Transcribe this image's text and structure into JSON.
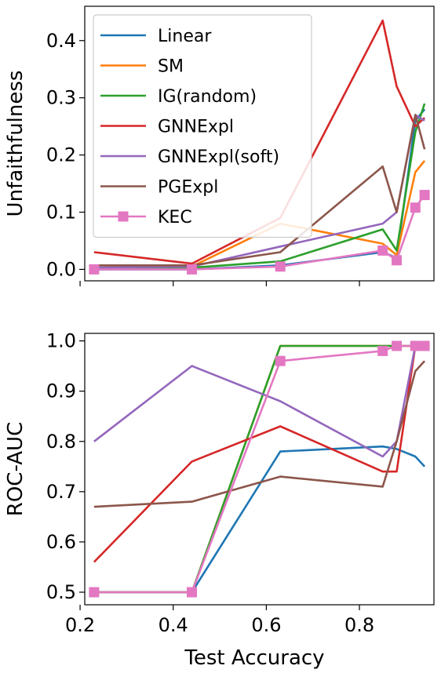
{
  "chart_data": [
    {
      "type": "line",
      "title": "",
      "xlabel": "",
      "ylabel": "Unfaithfulness",
      "xlim": [
        0.21,
        0.96
      ],
      "ylim": [
        -0.02,
        0.46
      ],
      "xticks": [
        0.2,
        0.4,
        0.6,
        0.8
      ],
      "yticks": [
        0.0,
        0.1,
        0.2,
        0.3,
        0.4
      ],
      "ytick_labels": [
        "0.0",
        "0.1",
        "0.2",
        "0.3",
        "0.4"
      ],
      "x_tick_labels_visible": false,
      "grid": false,
      "legend_placement": "top-left",
      "series": [
        {
          "name": "Linear",
          "color": "#1f77b4",
          "marker": "none",
          "x": [
            0.23,
            0.44,
            0.63,
            0.85,
            0.88,
            0.92,
            0.94
          ],
          "y": [
            0.0,
            0.0,
            0.007,
            0.03,
            0.02,
            0.26,
            0.28
          ]
        },
        {
          "name": "SM",
          "color": "#ff7f0e",
          "marker": "none",
          "x": [
            0.23,
            0.44,
            0.63,
            0.85,
            0.88,
            0.92,
            0.94
          ],
          "y": [
            0.003,
            0.005,
            0.08,
            0.045,
            0.025,
            0.17,
            0.19
          ]
        },
        {
          "name": "IG(random)",
          "color": "#2ca02c",
          "marker": "none",
          "x": [
            0.23,
            0.44,
            0.63,
            0.85,
            0.88,
            0.92,
            0.94
          ],
          "y": [
            0.003,
            0.003,
            0.014,
            0.07,
            0.033,
            0.24,
            0.29
          ]
        },
        {
          "name": "GNNExpl",
          "color": "#d62728",
          "marker": "none",
          "x": [
            0.23,
            0.44,
            0.63,
            0.85,
            0.88,
            0.92,
            0.94
          ],
          "y": [
            0.03,
            0.01,
            0.09,
            0.435,
            0.32,
            0.25,
            0.265
          ]
        },
        {
          "name": "GNNExpl(soft)",
          "color": "#9467bd",
          "marker": "none",
          "x": [
            0.23,
            0.44,
            0.63,
            0.85,
            0.88,
            0.92,
            0.94
          ],
          "y": [
            0.003,
            0.005,
            0.04,
            0.08,
            0.1,
            0.27,
            0.26
          ]
        },
        {
          "name": "PGExpl",
          "color": "#8c564b",
          "marker": "none",
          "x": [
            0.23,
            0.44,
            0.63,
            0.85,
            0.88,
            0.92,
            0.94
          ],
          "y": [
            0.007,
            0.007,
            0.03,
            0.18,
            0.1,
            0.27,
            0.21
          ]
        },
        {
          "name": "KEC",
          "color": "#e377c2",
          "marker": "square",
          "x": [
            0.23,
            0.44,
            0.63,
            0.85,
            0.88,
            0.92,
            0.94
          ],
          "y": [
            0.0,
            0.0,
            0.005,
            0.033,
            0.016,
            0.108,
            0.13
          ]
        }
      ]
    },
    {
      "type": "line",
      "title": "",
      "xlabel": "Test Accuracy",
      "ylabel": "ROC-AUC",
      "xlim": [
        0.21,
        0.96
      ],
      "ylim": [
        0.475,
        1.015
      ],
      "xticks": [
        0.2,
        0.4,
        0.6,
        0.8
      ],
      "xtick_labels": [
        "0.2",
        "0.4",
        "0.6",
        "0.8"
      ],
      "yticks": [
        0.5,
        0.6,
        0.7,
        0.8,
        0.9,
        1.0
      ],
      "ytick_labels": [
        "0.5",
        "0.6",
        "0.7",
        "0.8",
        "0.9",
        "1.0"
      ],
      "grid": false,
      "series": [
        {
          "name": "Linear",
          "color": "#1f77b4",
          "marker": "none",
          "x": [
            0.23,
            0.44,
            0.63,
            0.85,
            0.88,
            0.92,
            0.94
          ],
          "y": [
            0.5,
            0.5,
            0.78,
            0.79,
            0.785,
            0.77,
            0.75
          ]
        },
        {
          "name": "SM",
          "color": "#ff7f0e",
          "marker": "none",
          "x": [
            0.23,
            0.44,
            0.63,
            0.85,
            0.88,
            0.92,
            0.94
          ],
          "y": [
            0.5,
            0.5,
            0.99,
            0.99,
            0.99,
            0.99,
            0.99
          ]
        },
        {
          "name": "IG(random)",
          "color": "#2ca02c",
          "marker": "none",
          "x": [
            0.23,
            0.44,
            0.63,
            0.85,
            0.88,
            0.92,
            0.94
          ],
          "y": [
            0.5,
            0.5,
            0.99,
            0.99,
            0.99,
            0.99,
            0.99
          ]
        },
        {
          "name": "GNNExpl",
          "color": "#d62728",
          "marker": "none",
          "x": [
            0.23,
            0.44,
            0.63,
            0.85,
            0.88,
            0.92,
            0.94
          ],
          "y": [
            0.56,
            0.76,
            0.83,
            0.74,
            0.74,
            0.99,
            0.99
          ]
        },
        {
          "name": "GNNExpl(soft)",
          "color": "#9467bd",
          "marker": "none",
          "x": [
            0.23,
            0.44,
            0.63,
            0.85,
            0.88,
            0.92,
            0.94
          ],
          "y": [
            0.8,
            0.95,
            0.88,
            0.77,
            0.8,
            0.99,
            0.99
          ]
        },
        {
          "name": "PGExpl",
          "color": "#8c564b",
          "marker": "none",
          "x": [
            0.23,
            0.44,
            0.63,
            0.85,
            0.88,
            0.92,
            0.94
          ],
          "y": [
            0.67,
            0.68,
            0.73,
            0.71,
            0.8,
            0.94,
            0.96
          ]
        },
        {
          "name": "KEC",
          "color": "#e377c2",
          "marker": "square",
          "x": [
            0.23,
            0.44,
            0.63,
            0.85,
            0.88,
            0.92,
            0.94
          ],
          "y": [
            0.5,
            0.5,
            0.96,
            0.98,
            0.99,
            0.99,
            0.99
          ]
        }
      ]
    }
  ]
}
